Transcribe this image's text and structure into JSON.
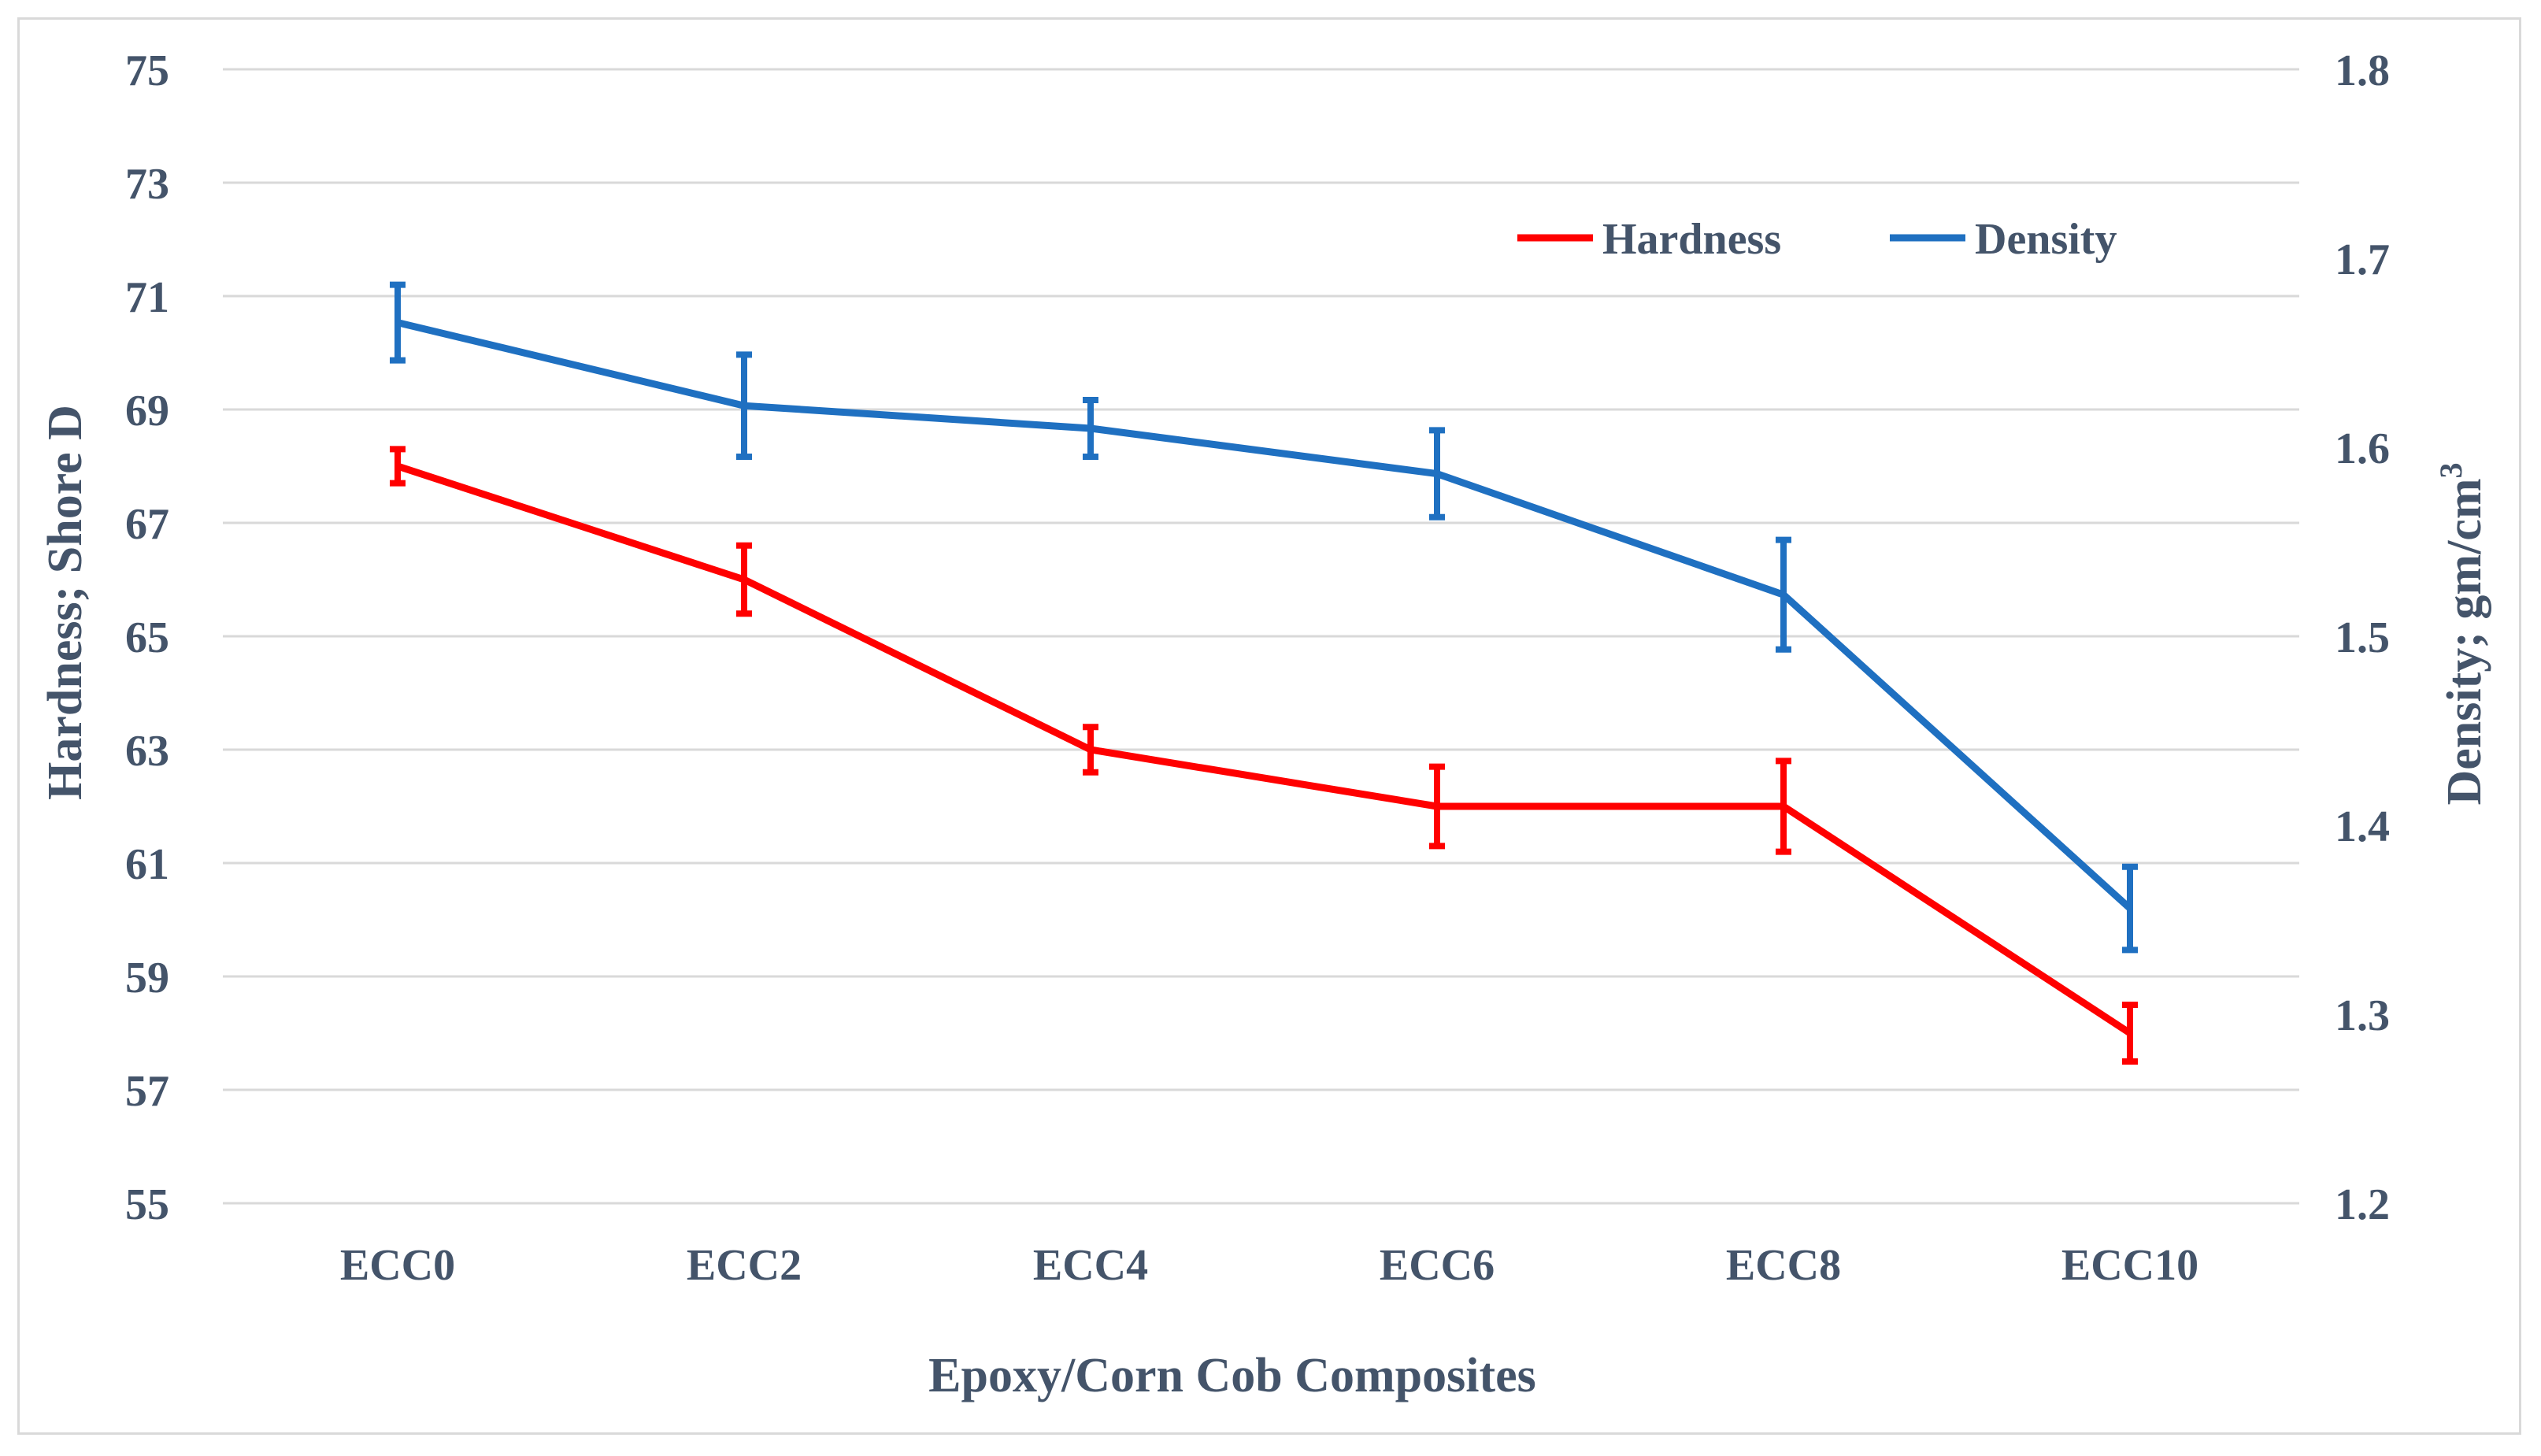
{
  "chart_data": {
    "type": "line",
    "title": "",
    "xlabel": "Epoxy/Corn Cob Composites",
    "ylabel": "Hardness; Shore D",
    "y2label": "Density; gm/cm",
    "y2label_superscript": "3",
    "categories": [
      "ECC0",
      "ECC2",
      "ECC4",
      "ECC6",
      "ECC8",
      "ECC10"
    ],
    "ylim": [
      55,
      75
    ],
    "y_ticks": [
      55,
      57,
      59,
      61,
      63,
      65,
      67,
      69,
      71,
      73,
      75
    ],
    "y2lim": [
      1.2,
      1.8
    ],
    "y2_ticks": [
      "1.2",
      "1.3",
      "1.4",
      "1.5",
      "1.6",
      "1.7",
      "1.8"
    ],
    "grid": true,
    "legend_position": "top-right",
    "series": [
      {
        "name": "Hardness",
        "axis": "left",
        "color": "#ff0000",
        "values": [
          68,
          66,
          63,
          62,
          62,
          58
        ],
        "errors": [
          0.3,
          0.6,
          0.4,
          0.7,
          0.8,
          0.5
        ]
      },
      {
        "name": "Density",
        "axis": "right",
        "color": "#1f70c1",
        "values": [
          1.666,
          1.622,
          1.61,
          1.586,
          1.522,
          1.356
        ],
        "errors": [
          0.02,
          0.027,
          0.015,
          0.023,
          0.029,
          0.022
        ]
      }
    ]
  },
  "style": {
    "text_color": "#44546a",
    "grid_color": "#d9d9d9"
  }
}
